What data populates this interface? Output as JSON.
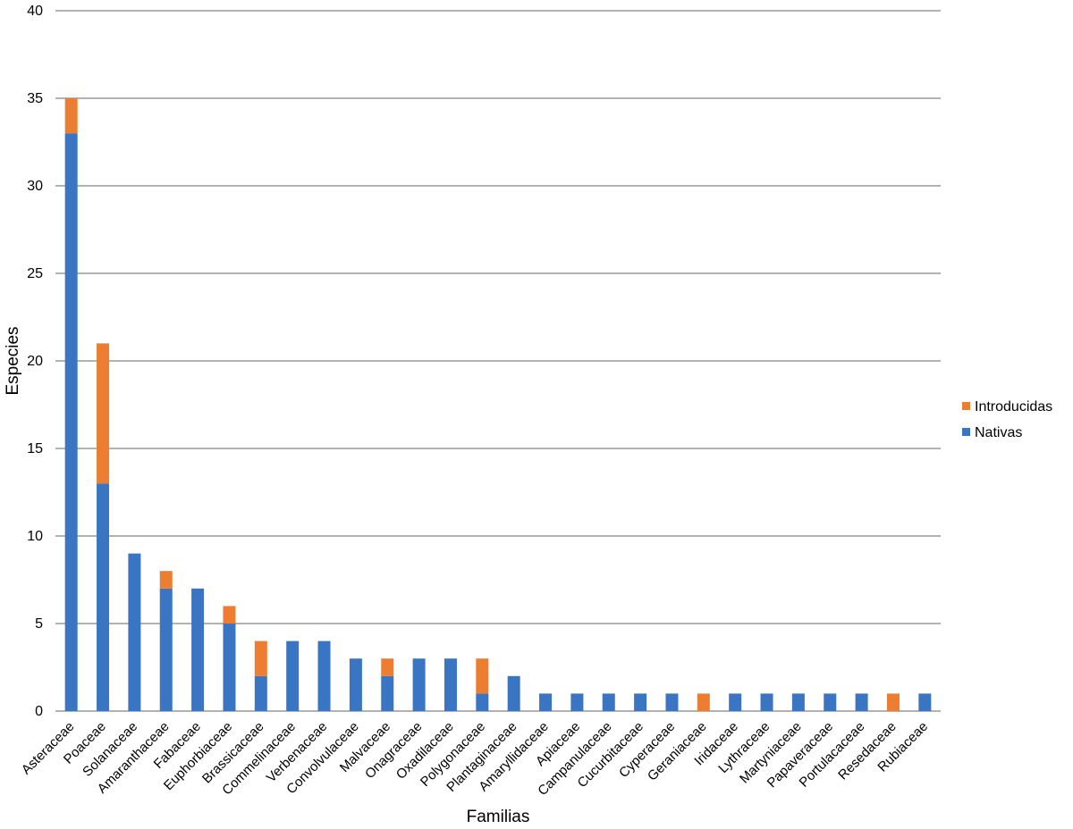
{
  "chart_data": {
    "type": "stacked_bar",
    "x_label": "Familias",
    "y_label": "Especies",
    "categories": [
      "Asteraceae",
      "Poaceae",
      "Solanaceae",
      "Amaranthaceae",
      "Fabaceae",
      "Euphorbiaceae",
      "Brassicaceae",
      "Commelinaceae",
      "Verbenaceae",
      "Convolvulaceae",
      "Malvaceae",
      "Onagraceae",
      "Oxadilaceae",
      "Polygonaceae",
      "Plantaginaceae",
      "Amaryllidaceae",
      "Apiaceae",
      "Campanulaceae",
      "Cucurbitaceae",
      "Cyperaceae",
      "Geraniaceae",
      "Iridaceae",
      "Lythraceae",
      "Martyniaceae",
      "Papaveraceae",
      "Portulacaceae",
      "Resedaceae",
      "Rubiaceae"
    ],
    "series": [
      {
        "name": "Nativas",
        "color": "#3a75c4",
        "values": [
          33,
          13,
          9,
          7,
          7,
          5,
          2,
          4,
          4,
          3,
          2,
          3,
          3,
          1,
          2,
          1,
          1,
          1,
          1,
          1,
          0,
          1,
          1,
          1,
          1,
          1,
          0,
          1
        ]
      },
      {
        "name": "Introducidas",
        "color": "#ed7d31",
        "values": [
          2,
          8,
          0,
          1,
          0,
          1,
          2,
          0,
          0,
          0,
          1,
          0,
          0,
          2,
          0,
          0,
          0,
          0,
          0,
          0,
          1,
          0,
          0,
          0,
          0,
          0,
          1,
          0
        ]
      }
    ],
    "ylim": [
      0,
      40
    ],
    "yticks": [
      0,
      5,
      10,
      15,
      20,
      25,
      30,
      35,
      40
    ],
    "grid": true,
    "legend": "right"
  }
}
